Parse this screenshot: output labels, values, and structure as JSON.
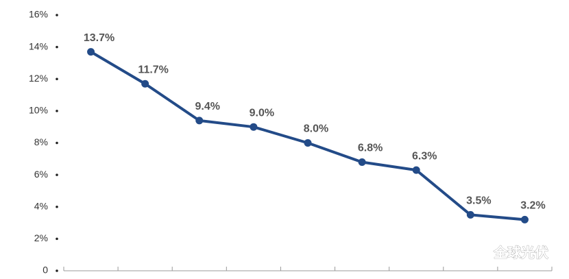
{
  "chart_data": {
    "type": "line",
    "categories": [
      null,
      null,
      null,
      null,
      null,
      null,
      null,
      null,
      null
    ],
    "series": [
      {
        "color": "#234b88",
        "values": [
          13.7,
          11.7,
          9.4,
          9.0,
          8.0,
          6.8,
          6.3,
          3.5,
          3.2
        ],
        "value_labels": [
          "13.7%",
          "11.7%",
          "9.4%",
          "9.0%",
          "8.0%",
          "6.8%",
          "6.3%",
          "3.5%",
          "3.2%"
        ]
      }
    ],
    "ylim": [
      0,
      16
    ],
    "yticks": [
      0,
      {
        "value": 2,
        "label": "2%"
      },
      {
        "value": 4,
        "label": "4%"
      },
      {
        "value": 6,
        "label": "6%"
      },
      {
        "value": 8,
        "label": "8%"
      },
      {
        "value": 10,
        "label": "10%"
      },
      {
        "value": 12,
        "label": "12%"
      },
      {
        "value": 14,
        "label": "14%"
      },
      {
        "value": 16,
        "label": "16%"
      }
    ],
    "watermark": "全球光伏"
  }
}
